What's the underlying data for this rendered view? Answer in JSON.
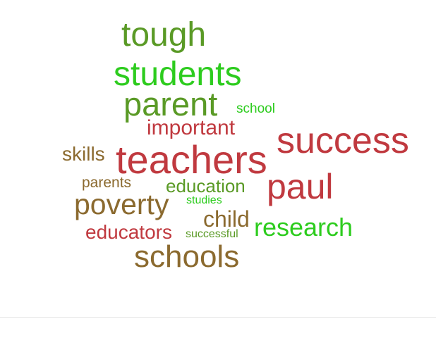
{
  "colors": {
    "olive_green": "#5a9a26",
    "bright_green": "#2dcc1e",
    "dark_red": "#c0393f",
    "brown": "#8b6a2f",
    "divider": "#e6e6e6"
  },
  "words": [
    {
      "text": "tough",
      "color": "#5a9a26"
    },
    {
      "text": "students",
      "color": "#2dcc1e"
    },
    {
      "text": "parent",
      "color": "#5a9a26"
    },
    {
      "text": "school",
      "color": "#2dcc1e"
    },
    {
      "text": "important",
      "color": "#c0393f"
    },
    {
      "text": "success",
      "color": "#c0393f"
    },
    {
      "text": "skills",
      "color": "#8b6a2f"
    },
    {
      "text": "teachers",
      "color": "#c0393f"
    },
    {
      "text": "parents",
      "color": "#8b6a2f"
    },
    {
      "text": "education",
      "color": "#5a9a26"
    },
    {
      "text": "paul",
      "color": "#c0393f"
    },
    {
      "text": "poverty",
      "color": "#8b6a2f"
    },
    {
      "text": "studies",
      "color": "#2dcc1e"
    },
    {
      "text": "child",
      "color": "#8b6a2f"
    },
    {
      "text": "research",
      "color": "#2dcc1e"
    },
    {
      "text": "educators",
      "color": "#c0393f"
    },
    {
      "text": "successful",
      "color": "#5a9a26"
    },
    {
      "text": "schools",
      "color": "#8b6a2f"
    }
  ]
}
